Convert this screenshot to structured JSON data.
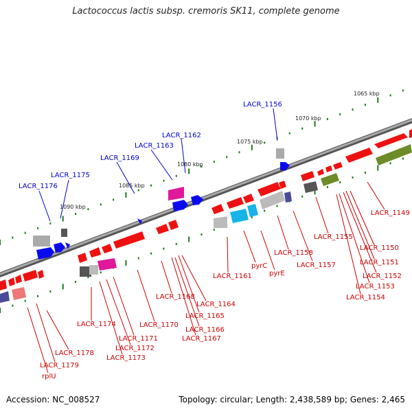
{
  "header": {
    "title": "Lactococcus lactis subsp. cremoris SK11, complete genome"
  },
  "footer": {
    "accession": "Accession: NC_008527",
    "summary": "Topology: circular; Length: 2,438,589 bp; Genes: 2,465"
  },
  "colors": {
    "backbone": "#888888",
    "red_gene": "#ee1111",
    "blue_gene": "#0a0af0",
    "grey_gene": "#aaaaaa",
    "dark_gene": "#555555",
    "magenta_gene": "#e0189a",
    "cyan_gene": "#18b4e8",
    "olive_gene": "#6d8c28",
    "navy_gene": "#4a4a9a",
    "pink_gene": "#ee7777",
    "tick": "#1a7a1a",
    "label_top": "#0000cc",
    "label_bottom": "#cc0000"
  },
  "kbp_labels": [
    "1065 kbp",
    "1070 kbp",
    "1075 kbp",
    "1080 kbp",
    "1085 kbp",
    "1090 kbp"
  ],
  "top_labels": [
    "LACR_1156",
    "LACR_1162",
    "LACR_1163",
    "LACR_1169",
    "LACR_1175",
    "LACR_1176"
  ],
  "bottom_labels": [
    "LACR_1149",
    "LACR_1150",
    "LACR_1151",
    "LACR_1152",
    "LACR_1153",
    "LACR_1154",
    "LACR_1155",
    "LACR_1157",
    "LACR_1158",
    "pyrE",
    "pyrC",
    "LACR_1161",
    "LACR_1164",
    "LACR_1165",
    "LACR_1166",
    "LACR_1167",
    "LACR_1168",
    "LACR_1170",
    "LACR_1171",
    "LACR_1172",
    "LACR_1173",
    "LACR_1174",
    "LACR_1178",
    "LACR_1179",
    "rplU"
  ]
}
